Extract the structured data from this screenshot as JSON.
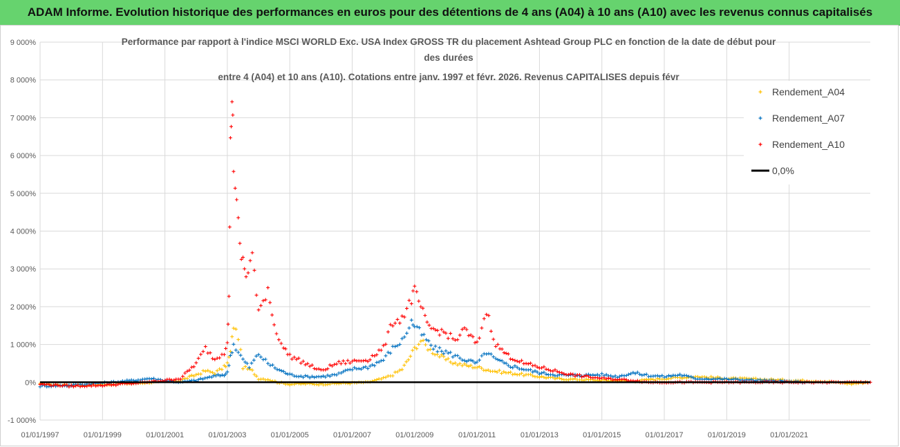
{
  "banner": {
    "text": "ADAM Informe. Evolution historique des performances en euros pour des détentions de 4 ans (A04) à 10 ans (A10) avec les revenus connus capitalisés"
  },
  "chart_data": {
    "type": "scatter",
    "title_lines": [
      "Performance par rapport à l'indice MSCI WORLD Exc. USA Index GROSS TR  du placement Ashtead Group PLC en fonction de la date de début pour",
      "des durées",
      "entre 4 (A04) et 10 ans (A10). Cotations entre janv. 1997 et févr. 2026. Revenus CAPITALISES depuis févr"
    ],
    "y_ticks": [
      "9 000%",
      "8 000%",
      "7 000%",
      "6 000%",
      "5 000%",
      "4 000%",
      "3 000%",
      "2 000%",
      "1 000%",
      "0%",
      "-1 000%"
    ],
    "x_ticks": [
      "01/01/1997",
      "01/01/1999",
      "01/01/2001",
      "01/01/2003",
      "01/01/2005",
      "01/01/2007",
      "01/01/2009",
      "01/01/2011",
      "01/01/2013",
      "01/01/2015",
      "01/01/2017",
      "01/01/2019",
      "01/01/2021"
    ],
    "ylim": [
      -1000,
      9000
    ],
    "xlim": [
      1997.0,
      2023.6
    ],
    "legend": [
      {
        "label": "Rendement_A04",
        "color": "#ffc000",
        "marker": "+"
      },
      {
        "label": "Rendement_A07",
        "color": "#0070c0",
        "marker": "+"
      },
      {
        "label": "Rendement_A10",
        "color": "#ff0000",
        "marker": "+"
      },
      {
        "label": "0,0%",
        "color": "#000000",
        "marker": "line"
      }
    ],
    "series": [
      {
        "name": "Rendement_A04",
        "color": "#ffc000",
        "x": [
          1997.0,
          1998.0,
          1999.0,
          2000.0,
          2001.0,
          2001.5,
          2002.0,
          2002.3,
          2002.6,
          2002.9,
          2003.0,
          2003.1,
          2003.2,
          2003.35,
          2003.5,
          2003.8,
          2004.0,
          2004.3,
          2004.6,
          2005.0,
          2005.5,
          2006.0,
          2006.5,
          2007.0,
          2007.5,
          2008.0,
          2008.3,
          2008.6,
          2008.8,
          2009.0,
          2009.2,
          2009.5,
          2009.8,
          2010.0,
          2010.3,
          2010.6,
          2011.0,
          2011.5,
          2012.0,
          2012.5,
          2013.0,
          2013.5,
          2014.0,
          2015.0,
          2016.0,
          2017.0,
          2018.0,
          2019.0,
          2020.0,
          2021.0,
          2022.0,
          2022.5,
          2023.0,
          2023.5
        ],
        "y": [
          -50,
          -80,
          -60,
          -30,
          20,
          50,
          200,
          300,
          250,
          400,
          500,
          800,
          1500,
          1200,
          400,
          300,
          100,
          80,
          0,
          -50,
          -40,
          -50,
          -30,
          -20,
          0,
          100,
          200,
          350,
          600,
          900,
          1100,
          850,
          700,
          600,
          500,
          450,
          400,
          300,
          250,
          200,
          150,
          100,
          80,
          50,
          30,
          100,
          150,
          100,
          80,
          50,
          30,
          0,
          -40,
          0
        ]
      },
      {
        "name": "Rendement_A07",
        "color": "#0070c0",
        "x": [
          1997.0,
          1998.0,
          1999.0,
          2000.0,
          2000.5,
          2001.0,
          2001.5,
          2002.0,
          2002.5,
          2002.9,
          2003.0,
          2003.1,
          2003.2,
          2003.35,
          2003.5,
          2003.7,
          2004.0,
          2004.3,
          2004.6,
          2005.0,
          2005.5,
          2006.0,
          2006.5,
          2007.0,
          2007.5,
          2008.0,
          2008.3,
          2008.6,
          2008.9,
          2009.0,
          2009.3,
          2009.6,
          2010.0,
          2010.3,
          2010.6,
          2011.0,
          2011.3,
          2011.6,
          2012.0,
          2012.5,
          2013.0,
          2013.5,
          2014.0,
          2015.0,
          2015.5,
          2016.0,
          2016.5,
          2017.0,
          2017.5,
          2018.0,
          2019.0,
          2020.0,
          2021.0,
          2021.5
        ],
        "y": [
          -100,
          -80,
          -20,
          50,
          100,
          50,
          0,
          50,
          150,
          200,
          250,
          700,
          1000,
          800,
          600,
          400,
          750,
          500,
          350,
          200,
          150,
          150,
          200,
          350,
          400,
          600,
          900,
          1100,
          1600,
          1500,
          1200,
          900,
          800,
          700,
          600,
          500,
          800,
          600,
          450,
          350,
          250,
          200,
          180,
          200,
          150,
          250,
          180,
          150,
          200,
          100,
          80,
          50,
          20,
          0
        ]
      },
      {
        "name": "Rendement_A10",
        "color": "#ff0000",
        "x": [
          1997.0,
          1998.0,
          1999.0,
          2000.0,
          2001.0,
          2001.5,
          2002.0,
          2002.3,
          2002.6,
          2002.9,
          2003.0,
          2003.05,
          2003.1,
          2003.15,
          2003.2,
          2003.3,
          2003.4,
          2003.5,
          2003.6,
          2003.8,
          2004.0,
          2004.3,
          2004.5,
          2004.8,
          2005.0,
          2005.5,
          2006.0,
          2006.5,
          2007.0,
          2007.5,
          2008.0,
          2008.3,
          2008.6,
          2008.9,
          2009.0,
          2009.2,
          2009.4,
          2009.6,
          2010.0,
          2010.3,
          2010.6,
          2011.0,
          2011.3,
          2011.6,
          2012.0,
          2012.5,
          2013.0,
          2013.5,
          2014.0,
          2015.0,
          2016.0,
          2016.5,
          2017.0,
          2018.0,
          2019.0,
          2020.0,
          2021.0,
          2022.0,
          2023.0,
          2023.6
        ],
        "y": [
          -50,
          -100,
          -80,
          -30,
          50,
          100,
          500,
          900,
          600,
          800,
          1100,
          2200,
          6200,
          7700,
          5800,
          4800,
          3500,
          3200,
          2800,
          3400,
          1800,
          2500,
          1500,
          900,
          700,
          500,
          300,
          500,
          550,
          600,
          900,
          1600,
          1700,
          2200,
          2400,
          2000,
          1500,
          1400,
          1300,
          1100,
          1400,
          1000,
          1900,
          1000,
          700,
          500,
          400,
          300,
          200,
          100,
          50,
          0,
          0,
          0,
          0,
          0,
          0,
          0,
          0,
          0
        ]
      }
    ]
  }
}
